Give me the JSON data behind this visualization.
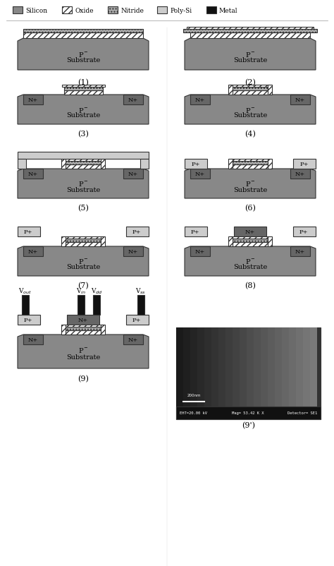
{
  "figsize": [
    4.74,
    8.03
  ],
  "dpi": 100,
  "colors": {
    "silicon": "#999999",
    "oxide": "#ffffff",
    "nitride": "#aaaaaa",
    "polysi": "#cccccc",
    "metal": "#111111",
    "background": "#ffffff",
    "dark_silicon": "#777777",
    "substrate": "#888888",
    "nplus": "#999999",
    "outline": "#333333"
  },
  "legend_items": [
    "Silicon",
    "Oxide",
    "Nitride",
    "Poly-Si",
    "Metal"
  ],
  "legend_colors": [
    "#888888",
    "#ffffff",
    "#aaaaaa",
    "#cccccc",
    "#111111"
  ],
  "legend_hatches": [
    null,
    "////",
    "....",
    null,
    null
  ]
}
